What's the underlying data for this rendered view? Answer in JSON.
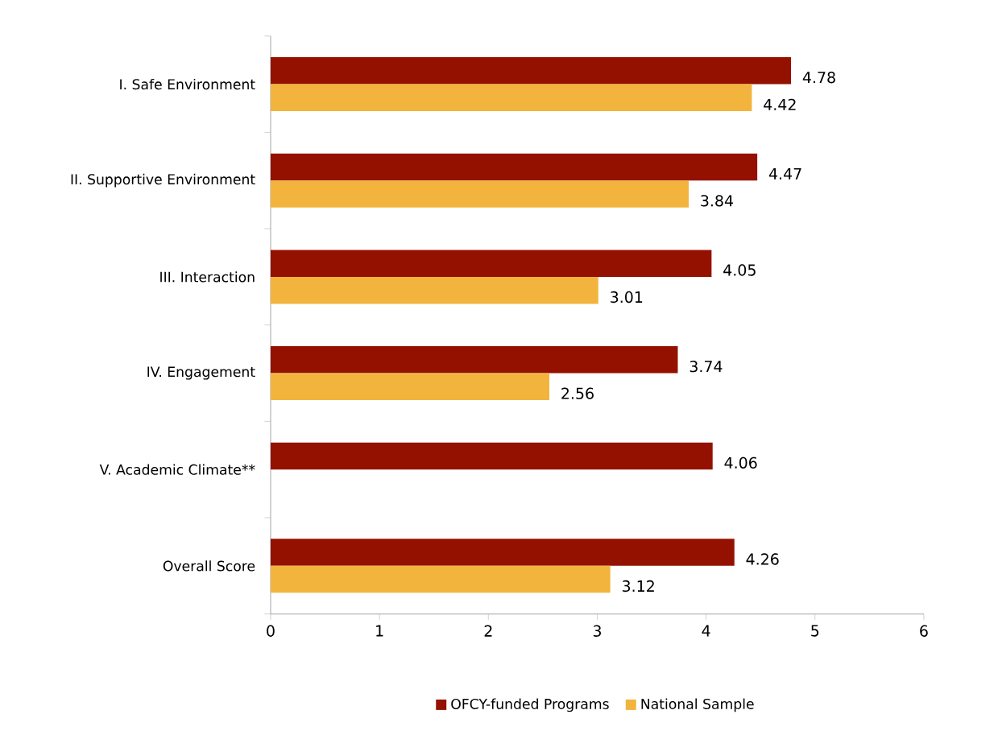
{
  "chart_data": {
    "type": "bar",
    "orientation": "horizontal",
    "categories": [
      "I. Safe Environment",
      "II. Supportive Environment",
      "III. Interaction",
      "IV. Engagement",
      "V. Academic Climate**",
      "Overall Score"
    ],
    "series": [
      {
        "name": "OFCY-funded Programs",
        "color": "#941100",
        "values": [
          4.78,
          4.47,
          4.05,
          3.74,
          4.06,
          4.26
        ]
      },
      {
        "name": "National Sample",
        "color": "#f2b43c",
        "values": [
          4.42,
          3.84,
          3.01,
          2.56,
          null,
          3.12
        ]
      }
    ],
    "xlim": [
      0,
      6
    ],
    "xticks": [
      0,
      1,
      2,
      3,
      4,
      5,
      6
    ],
    "data_labels": true,
    "legend": "bottom",
    "grid": false
  }
}
